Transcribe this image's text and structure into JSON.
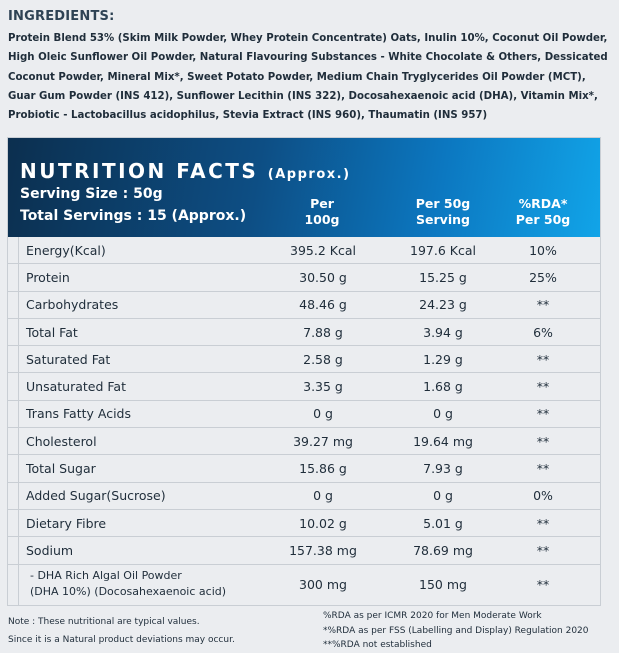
{
  "ingredients": {
    "title": "INGREDIENTS:",
    "text": "Protein Blend 53% (Skim Milk Powder, Whey Protein Concentrate) Oats, Inulin 10%, Coconut Oil Powder, High Oleic Sunflower Oil Powder, Natural Flavouring Substances - White Chocolate & Others, Dessicated Coconut Powder, Mineral Mix*, Sweet Potato Powder, Medium Chain Tryglycerides Oil Powder (MCT), Guar Gum Powder (INS 412), Sunflower Lecithin (INS 322), Docosahexaenoic acid (DHA), Vitamin Mix*, Probiotic - Lactobacillus acidophilus, Stevia Extract (INS 960), Thaumatin (INS 957)"
  },
  "nutrition": {
    "title": "NUTRITION FACTS",
    "title_suffix": "(Approx.)",
    "serving_size": "Serving Size : 50g",
    "total_servings": "Total Servings : 15 (Approx.)",
    "columns": [
      "Per\n100g",
      "Per 50g\nServing",
      "%RDA*\nPer 50g"
    ],
    "column_lines": [
      [
        "Per",
        "100g"
      ],
      [
        "Per 50g",
        "Serving"
      ],
      [
        "%RDA*",
        "Per 50g"
      ]
    ],
    "rows": [
      {
        "name": "Energy(Kcal)",
        "per100": "395.2 Kcal",
        "per50": "197.6 Kcal",
        "rda": "10%"
      },
      {
        "name": "Protein",
        "per100": "30.50 g",
        "per50": "15.25 g",
        "rda": "25%"
      },
      {
        "name": "Carbohydrates",
        "per100": "48.46 g",
        "per50": "24.23 g",
        "rda": "**"
      },
      {
        "name": "Total Fat",
        "per100": "7.88 g",
        "per50": "3.94 g",
        "rda": "6%"
      },
      {
        "name": "Saturated Fat",
        "per100": "2.58 g",
        "per50": "1.29 g",
        "rda": "**"
      },
      {
        "name": "Unsaturated Fat",
        "per100": "3.35 g",
        "per50": "1.68 g",
        "rda": "**"
      },
      {
        "name": "Trans Fatty Acids",
        "per100": "0 g",
        "per50": "0 g",
        "rda": "**"
      },
      {
        "name": "Cholesterol",
        "per100": "39.27 mg",
        "per50": "19.64 mg",
        "rda": "**"
      },
      {
        "name": "Total Sugar",
        "per100": "15.86 g",
        "per50": "7.93 g",
        "rda": "**"
      },
      {
        "name": "Added Sugar(Sucrose)",
        "per100": "0 g",
        "per50": "0 g",
        "rda": "0%"
      },
      {
        "name": "Dietary Fibre",
        "per100": "10.02 g",
        "per50": "5.01 g",
        "rda": "**"
      },
      {
        "name": "Sodium",
        "per100": "157.38 mg",
        "per50": "78.69 mg",
        "rda": "**"
      },
      {
        "name": "- DHA Rich Algal Oil Powder",
        "name2": "(DHA 10%) (Docosahexaenoic acid)",
        "per100": "300 mg",
        "per50": "150 mg",
        "rda": "**"
      }
    ]
  },
  "notes": {
    "left": [
      "Note : These nutritional are typical values.",
      "Since it is a Natural product deviations may occur."
    ],
    "right": [
      "%RDA as per ICMR 2020 for Men Moderate Work",
      "*%RDA as per FSS (Labelling and Display) Regulation 2020",
      "**%RDA not established"
    ]
  },
  "colors": {
    "header_dark": "#0c2f4f",
    "header_light": "#11a4e8",
    "background": "#ebedf0"
  }
}
